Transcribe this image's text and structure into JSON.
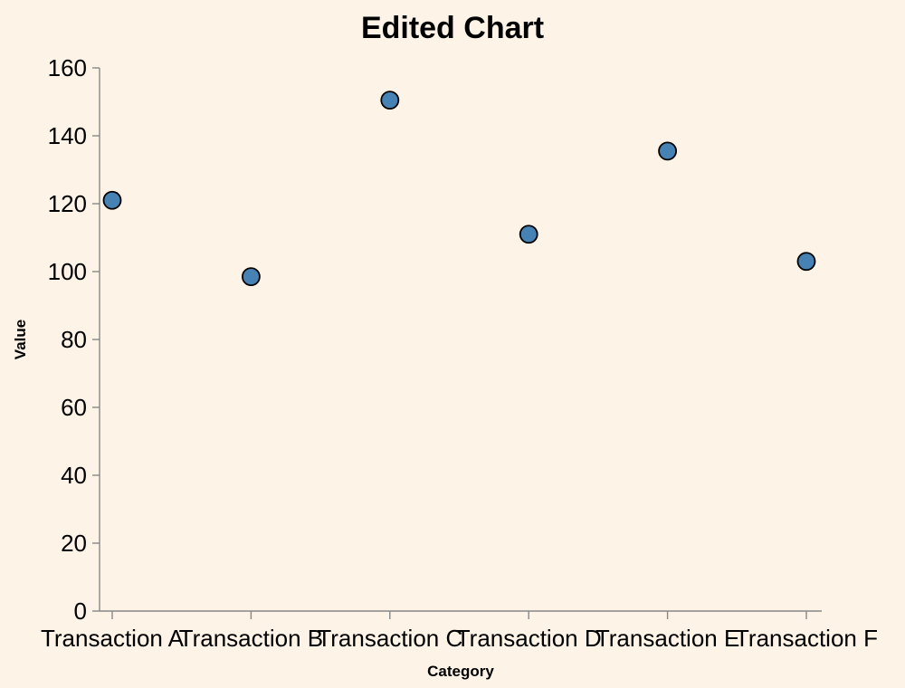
{
  "chart_data": {
    "type": "scatter",
    "title": "Edited Chart",
    "xlabel": "Category",
    "ylabel": "Value",
    "categories": [
      "Transaction A",
      "Transaction B",
      "Transaction C",
      "Transaction D",
      "Transaction E",
      "Transaction F"
    ],
    "values": [
      121,
      98.5,
      150.5,
      111,
      135.5,
      103
    ],
    "ylim": [
      0,
      160
    ],
    "yticks": [
      0,
      20,
      40,
      60,
      80,
      100,
      120,
      140,
      160
    ],
    "grid": false,
    "colors": {
      "background": "#fdf3e6",
      "point_fill": "#4682b4",
      "point_stroke": "#000000",
      "axis": "#888888"
    }
  }
}
